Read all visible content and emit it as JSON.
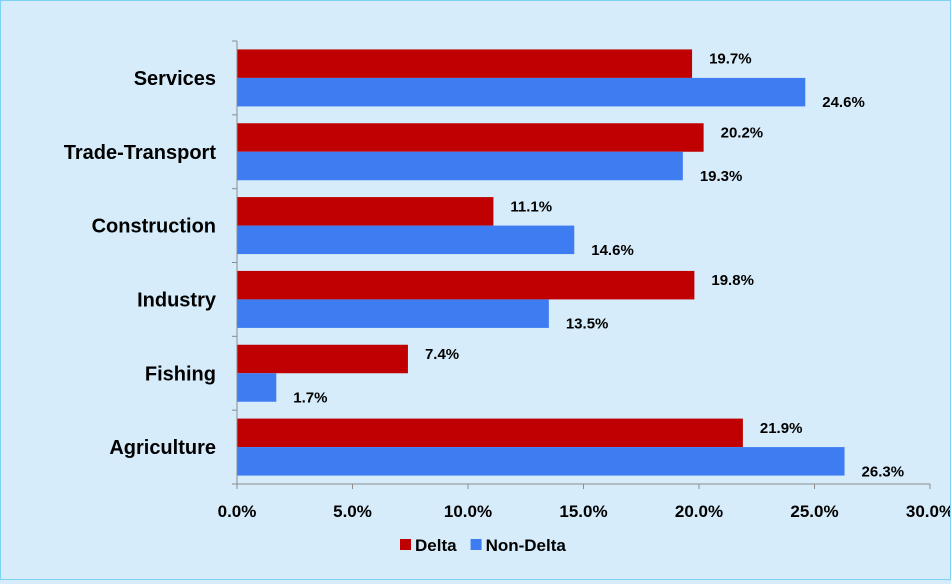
{
  "chart_data": {
    "type": "bar",
    "orientation": "horizontal",
    "title": "",
    "xlabel": "",
    "ylabel": "",
    "xlim": [
      0,
      30
    ],
    "x_tick_values": [
      0,
      5,
      10,
      15,
      20,
      25,
      30
    ],
    "x_tick_labels": [
      "0.0%",
      "5.0%",
      "10.0%",
      "15.0%",
      "20.0%",
      "25.0%",
      "30.0%"
    ],
    "categories": [
      "Services",
      "Trade-Transport",
      "Construction",
      "Industry",
      "Fishing",
      "Agriculture"
    ],
    "series": [
      {
        "name": "Delta",
        "color": "#c00000",
        "values": [
          19.7,
          20.2,
          11.1,
          19.8,
          7.4,
          21.9
        ],
        "labels": [
          "19.7%",
          "20.2%",
          "11.1%",
          "19.8%",
          "7.4%",
          "21.9%"
        ]
      },
      {
        "name": "Non-Delta",
        "color": "#3e7cf2",
        "values": [
          24.6,
          19.3,
          14.6,
          13.5,
          1.7,
          26.3
        ],
        "labels": [
          "24.6%",
          "19.3%",
          "14.6%",
          "13.5%",
          "1.7%",
          "26.3%"
        ]
      }
    ],
    "grid": false,
    "legend_position": "bottom"
  }
}
